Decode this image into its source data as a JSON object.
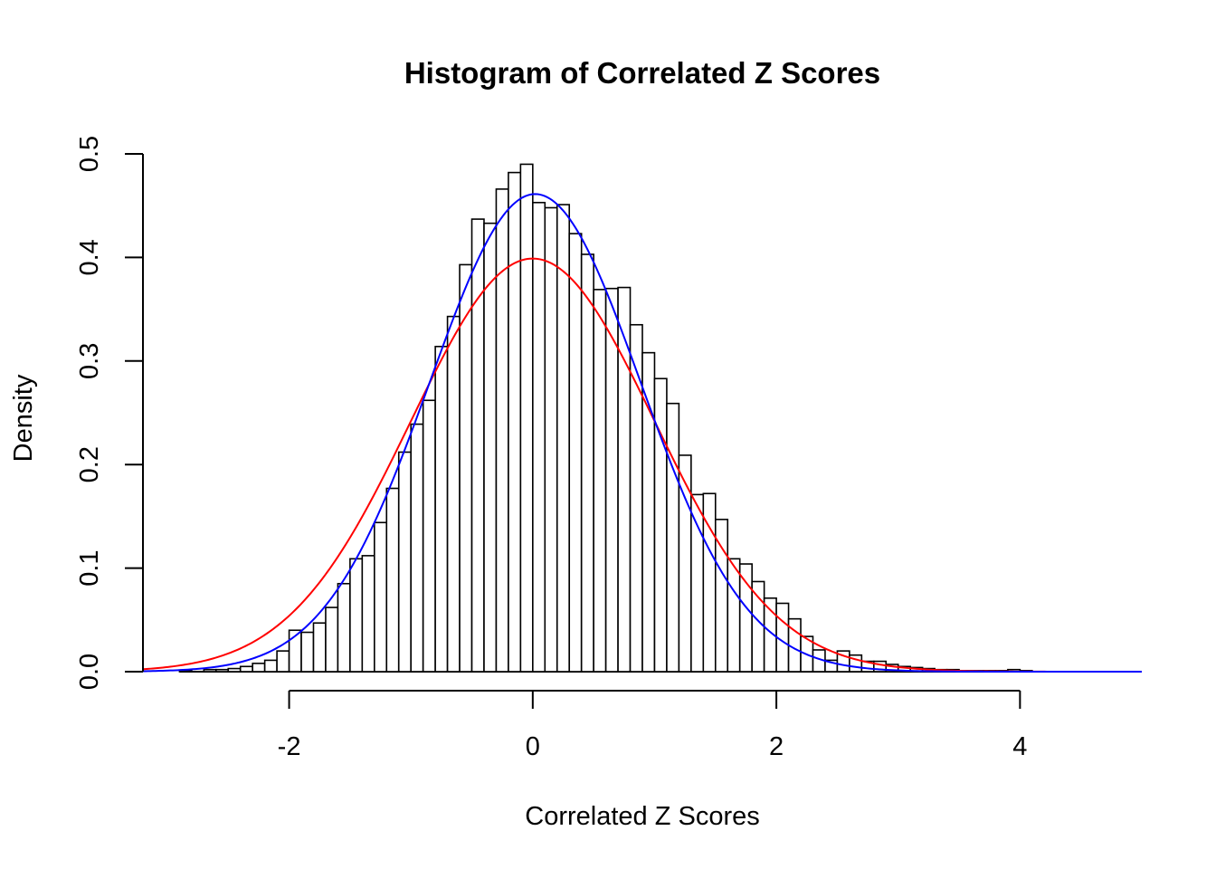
{
  "chart_data": {
    "type": "bar",
    "title": "Histogram of Correlated Z Scores",
    "xlabel": "Correlated Z Scores",
    "ylabel": "Density",
    "xlim": [
      -3.2,
      5.0
    ],
    "ylim": [
      0,
      0.5
    ],
    "xticks": [
      "-2",
      "0",
      "2",
      "4"
    ],
    "yticks": [
      "0.0",
      "0.1",
      "0.2",
      "0.3",
      "0.4",
      "0.5"
    ],
    "bin_width": 0.1,
    "bins_start": -2.9,
    "bar_values": [
      0.001,
      0.0,
      0.002,
      0.002,
      0.003,
      0.005,
      0.008,
      0.011,
      0.02,
      0.04,
      0.038,
      0.047,
      0.062,
      0.085,
      0.109,
      0.112,
      0.144,
      0.177,
      0.212,
      0.239,
      0.262,
      0.314,
      0.343,
      0.393,
      0.437,
      0.433,
      0.466,
      0.482,
      0.49,
      0.453,
      0.448,
      0.451,
      0.423,
      0.403,
      0.369,
      0.37,
      0.371,
      0.335,
      0.308,
      0.283,
      0.259,
      0.209,
      0.171,
      0.172,
      0.147,
      0.109,
      0.104,
      0.087,
      0.071,
      0.066,
      0.051,
      0.034,
      0.021,
      0.011,
      0.02,
      0.016,
      0.01,
      0.01,
      0.007,
      0.005,
      0.004,
      0.003,
      0.002,
      0.002,
      0.001,
      0.001,
      0.001,
      0.001,
      0.002,
      0.001,
      0.0,
      0.0,
      0.0,
      0.0,
      0.0,
      0.0,
      0.0,
      0.0,
      0.0,
      0.0,
      0.0,
      0.0,
      0.0,
      0.0,
      0.0,
      0.0,
      0.0,
      0.0,
      0.0,
      0.0,
      0.0,
      0.0,
      0.001,
      0.0,
      0.0,
      0.0,
      0.0,
      0.0,
      0.0,
      0.0,
      0.001
    ],
    "curves": [
      {
        "distribution": "normal",
        "mean": 0,
        "sd": 1,
        "color": "#ff0000"
      },
      {
        "distribution": "normal",
        "mean": 0.02,
        "sd": 0.865,
        "color": "#0000ff"
      }
    ],
    "bar_fill": "#ffffff",
    "bar_stroke": "#000000"
  }
}
